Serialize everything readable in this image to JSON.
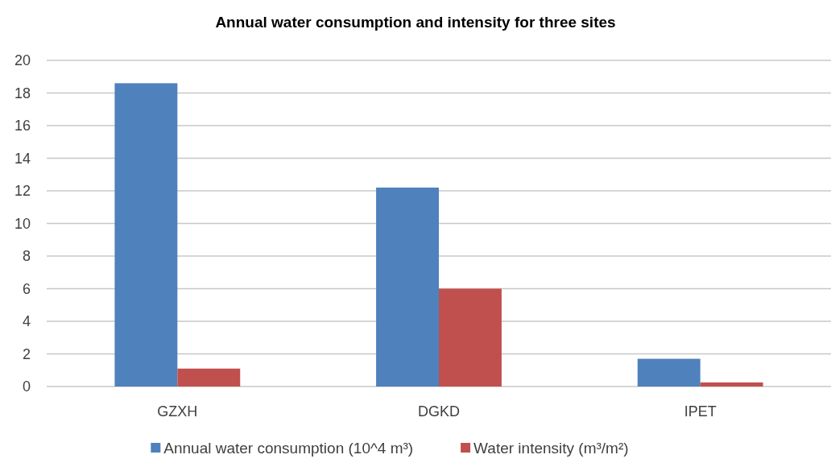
{
  "chart_data": {
    "type": "bar",
    "title": "Annual water consumption and intensity for three sites",
    "categories": [
      "GZXH",
      "DGKD",
      "IPET"
    ],
    "series": [
      {
        "name": "Annual water consumption (10^4 m³)",
        "color": "#4f81bd",
        "values": [
          18.6,
          12.2,
          1.7
        ]
      },
      {
        "name": "Water intensity (m³/m²)",
        "color": "#c0504d",
        "values": [
          1.1,
          6.0,
          0.25
        ]
      }
    ],
    "ylim": [
      0,
      20
    ],
    "yticks": [
      0,
      2,
      4,
      6,
      8,
      10,
      12,
      14,
      16,
      18,
      20
    ],
    "grid": "y",
    "legend": "bottom"
  }
}
